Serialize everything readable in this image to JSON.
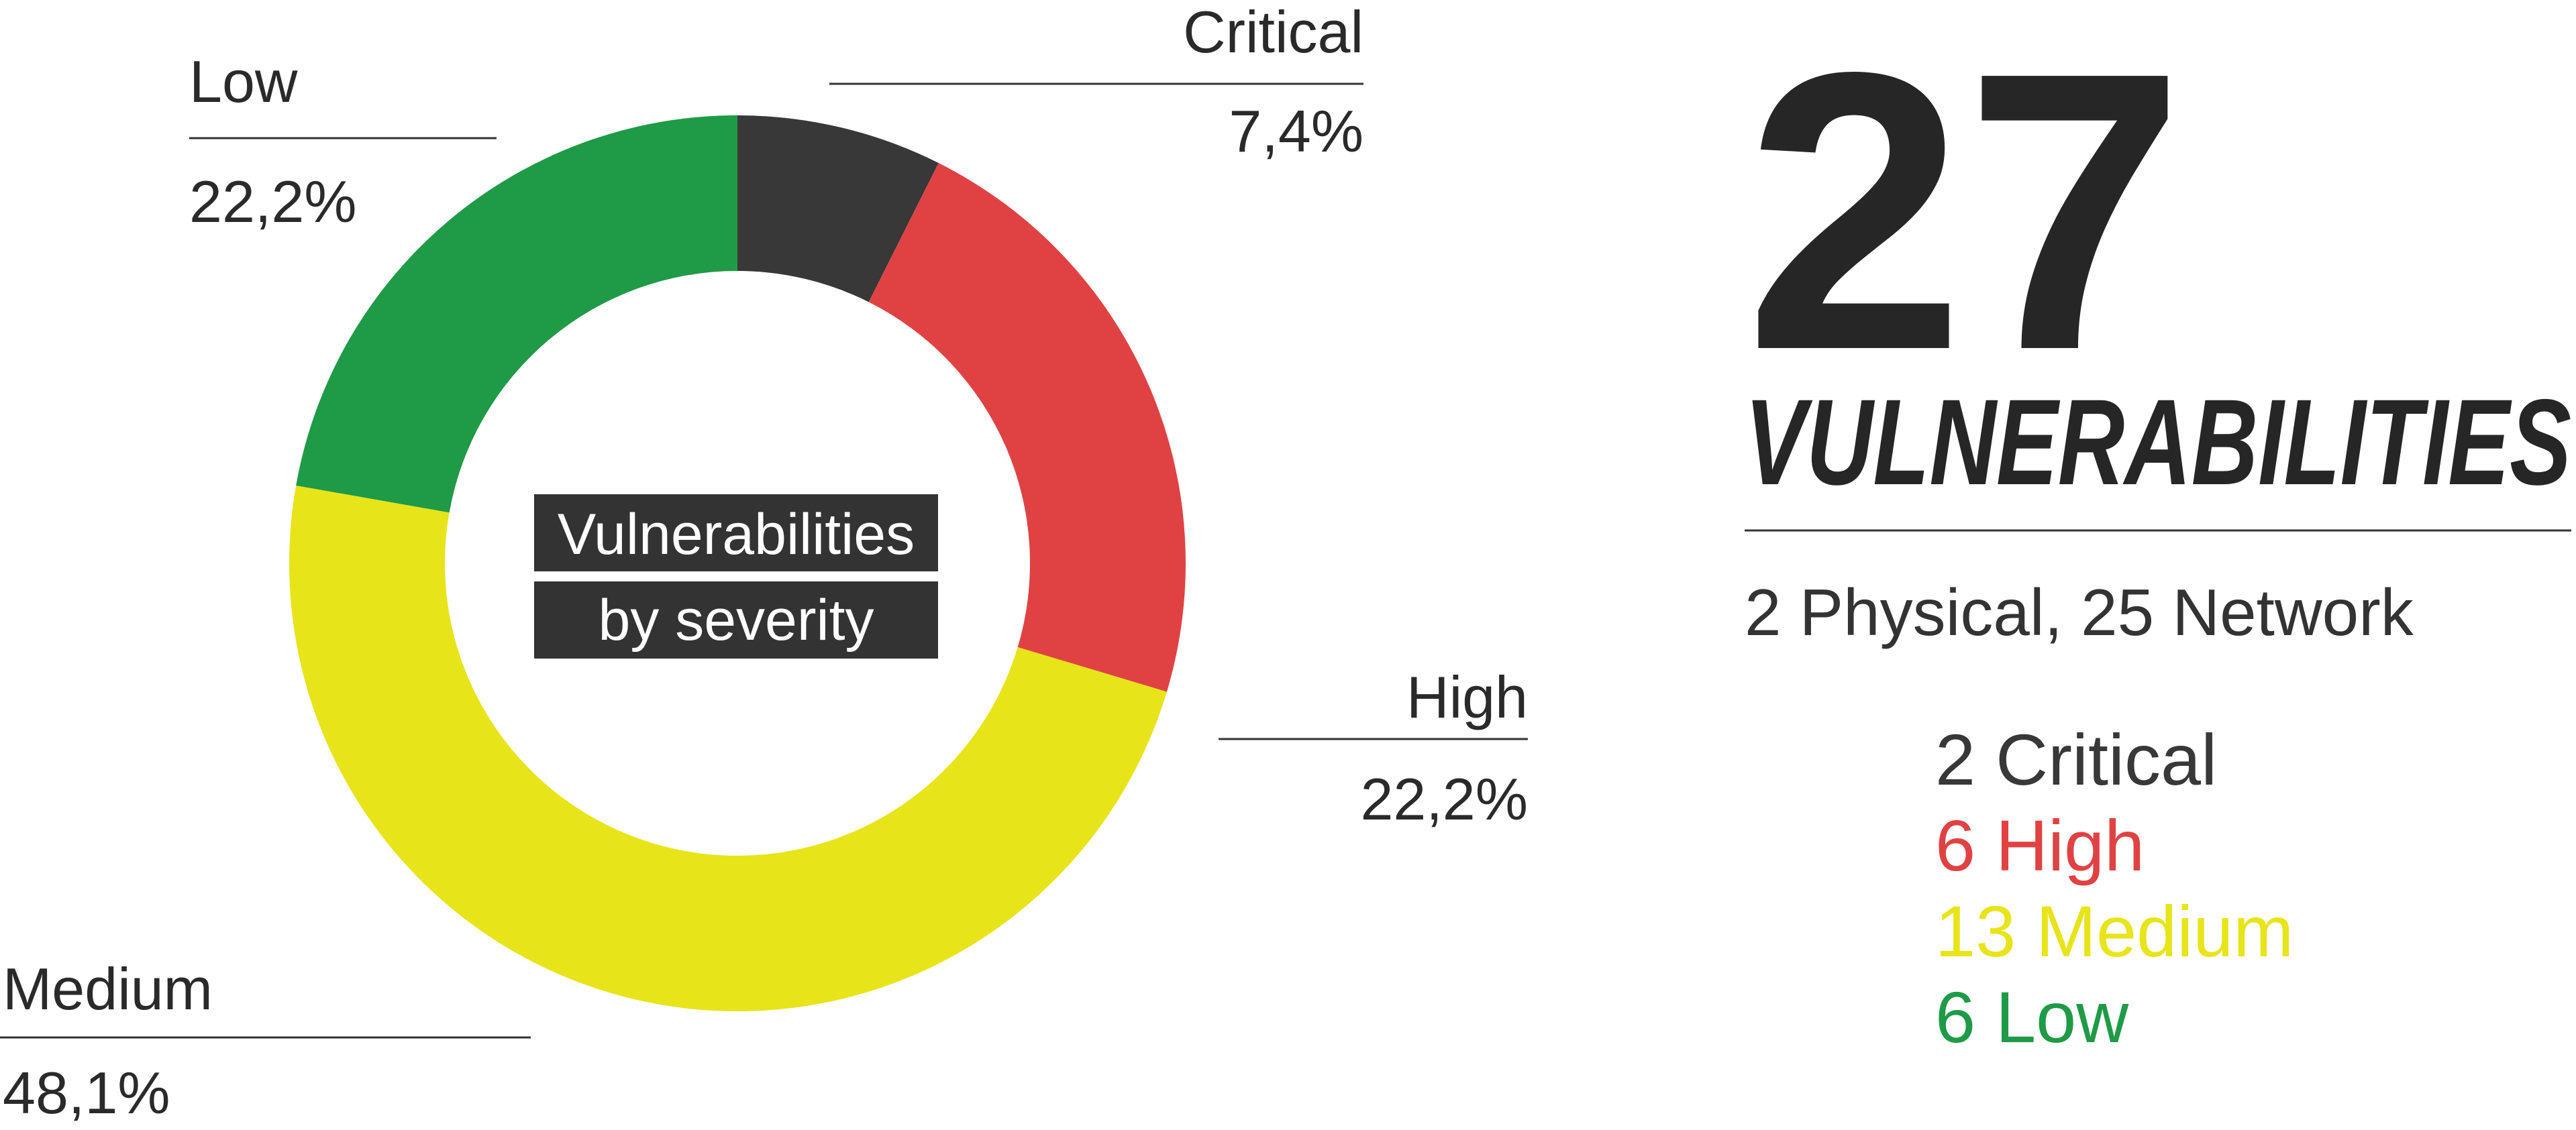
{
  "chart_data": {
    "type": "pie",
    "donut": true,
    "center_label": [
      "Vulnerabilities",
      "by severity"
    ],
    "categories": [
      "Critical",
      "High",
      "Medium",
      "Low"
    ],
    "values": [
      7.4,
      22.2,
      48.1,
      22.2
    ],
    "value_labels": [
      "7,4%",
      "22,2%",
      "48,1%",
      "22,2%"
    ],
    "colors": [
      "#383838",
      "#e04243",
      "#e8e41a",
      "#1f9a46"
    ]
  },
  "summary": {
    "total": 27,
    "label": "VULNERABILITIES",
    "breakdown": "2 Physical, 25 Network",
    "counts": [
      {
        "text": "2 Critical",
        "color": "#383838"
      },
      {
        "text": "6 High",
        "color": "#e04243"
      },
      {
        "text": "13 Medium",
        "color": "#e8e41a"
      },
      {
        "text": "6 Low",
        "color": "#1f9a46"
      }
    ]
  }
}
